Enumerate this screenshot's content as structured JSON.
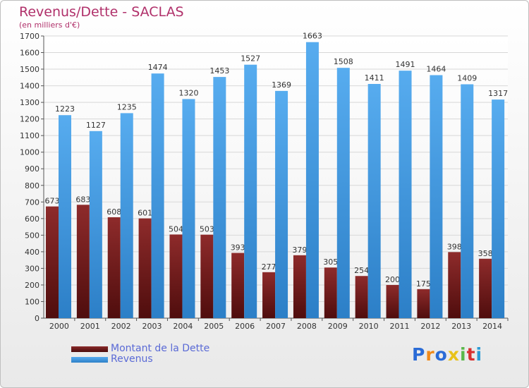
{
  "title": "Revenus/Dette - SACLAS",
  "subtitle": "(en milliers d'€)",
  "legend": {
    "debt": "Montant de la Dette",
    "revenue": "Revenus"
  },
  "logo": "Proxiti",
  "colors": {
    "debt": "#7a1f1f",
    "revenue": "#3d9ae0",
    "title": "#b0306a",
    "legend_text": "#5a6ad6"
  },
  "chart_data": {
    "type": "bar",
    "title": "Revenus/Dette - SACLAS",
    "subtitle": "(en milliers d'€)",
    "categories": [
      "2000",
      "2001",
      "2002",
      "2003",
      "2004",
      "2005",
      "2006",
      "2007",
      "2008",
      "2009",
      "2010",
      "2011",
      "2012",
      "2013",
      "2014"
    ],
    "series": [
      {
        "name": "Montant de la Dette",
        "values": [
          673,
          683,
          608,
          601,
          504,
          503,
          393,
          277,
          379,
          305,
          254,
          200,
          175,
          398,
          358
        ]
      },
      {
        "name": "Revenus",
        "values": [
          1223,
          1127,
          1235,
          1474,
          1320,
          1453,
          1527,
          1369,
          1663,
          1508,
          1411,
          1491,
          1464,
          1409,
          1317
        ]
      }
    ],
    "ylim": [
      0,
      1700
    ],
    "yticks": [
      0,
      100,
      200,
      300,
      400,
      500,
      600,
      700,
      800,
      900,
      1000,
      1100,
      1200,
      1300,
      1400,
      1500,
      1600,
      1700
    ],
    "grid": true,
    "legend_position": "bottom-left"
  }
}
